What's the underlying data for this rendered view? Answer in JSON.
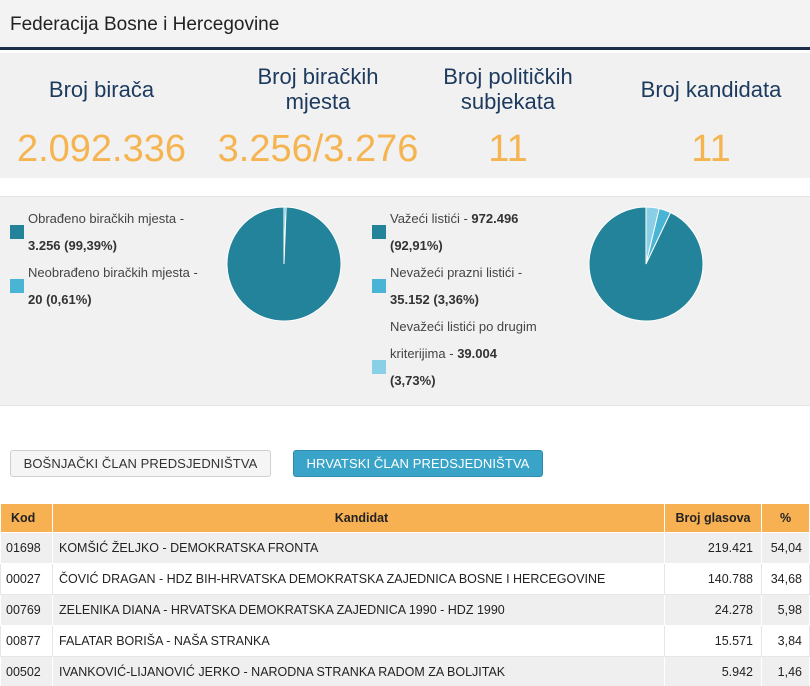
{
  "header": {
    "title": "Federacija Bosne i Hercegovine"
  },
  "stats": [
    {
      "label": "Broj birača",
      "value": "2.092.336"
    },
    {
      "label": "Broj biračkih mjesta",
      "value": "3.256/3.276"
    },
    {
      "label": "Broj političkih subjekata",
      "value": "11"
    },
    {
      "label": "Broj kandidata",
      "value": "11"
    }
  ],
  "stations_legend": [
    {
      "label": "Obrađeno biračkih mjesta -",
      "value": "3.256 (99,39%)",
      "color": "#23839a",
      "fraction": 0.9939
    },
    {
      "label": "Neobrađeno biračkih mjesta -",
      "value": "20 (0,61%)",
      "color": "#4ab4d4",
      "fraction": 0.0061
    }
  ],
  "ballots_legend": [
    {
      "label": "Važeći listići -",
      "value": "972.496",
      "value2": "(92,91%)",
      "color": "#23839a",
      "fraction": 0.9291
    },
    {
      "label": "Nevažeći prazni listići -",
      "value": "35.152 (3,36%)",
      "color": "#4ab4d4",
      "fraction": 0.0336
    },
    {
      "label1": "Nevažeći listići po drugim",
      "label2": "kriterijima -",
      "value": "39.004",
      "value2": "(3,73%)",
      "color": "#89cfe6",
      "fraction": 0.0373
    }
  ],
  "tabs": {
    "bosniak": "BOŠNJAČKI ČLAN PREDSJEDNIŠTVA",
    "croat": "HRVATSKI ČLAN PREDSJEDNIŠTVA"
  },
  "table": {
    "headers": {
      "kod": "Kod",
      "kandidat": "Kandidat",
      "glasovi": "Broj glasova",
      "pct": "%"
    },
    "rows": [
      {
        "kod": "01698",
        "kandidat": "KOMŠIĆ ŽELJKO - DEMOKRATSKA FRONTA",
        "glasovi": "219.421",
        "pct": "54,04"
      },
      {
        "kod": "00027",
        "kandidat": "ČOVIĆ DRAGAN - HDZ BIH-HRVATSKA DEMOKRATSKA ZAJEDNICA BOSNE I HERCEGOVINE",
        "glasovi": "140.788",
        "pct": "34,68"
      },
      {
        "kod": "00769",
        "kandidat": "ZELENIKA DIANA - HRVATSKA DEMOKRATSKA ZAJEDNICA 1990 - HDZ 1990",
        "glasovi": "24.278",
        "pct": "5,98"
      },
      {
        "kod": "00877",
        "kandidat": "FALATAR BORIŠA - NAŠA STRANKA",
        "glasovi": "15.571",
        "pct": "3,84"
      },
      {
        "kod": "00502",
        "kandidat": "IVANKOVIĆ-LIJANOVIĆ JERKO - NARODNA STRANKA RADOM ZA BOLJITAK",
        "glasovi": "5.942",
        "pct": "1,46"
      }
    ]
  }
}
